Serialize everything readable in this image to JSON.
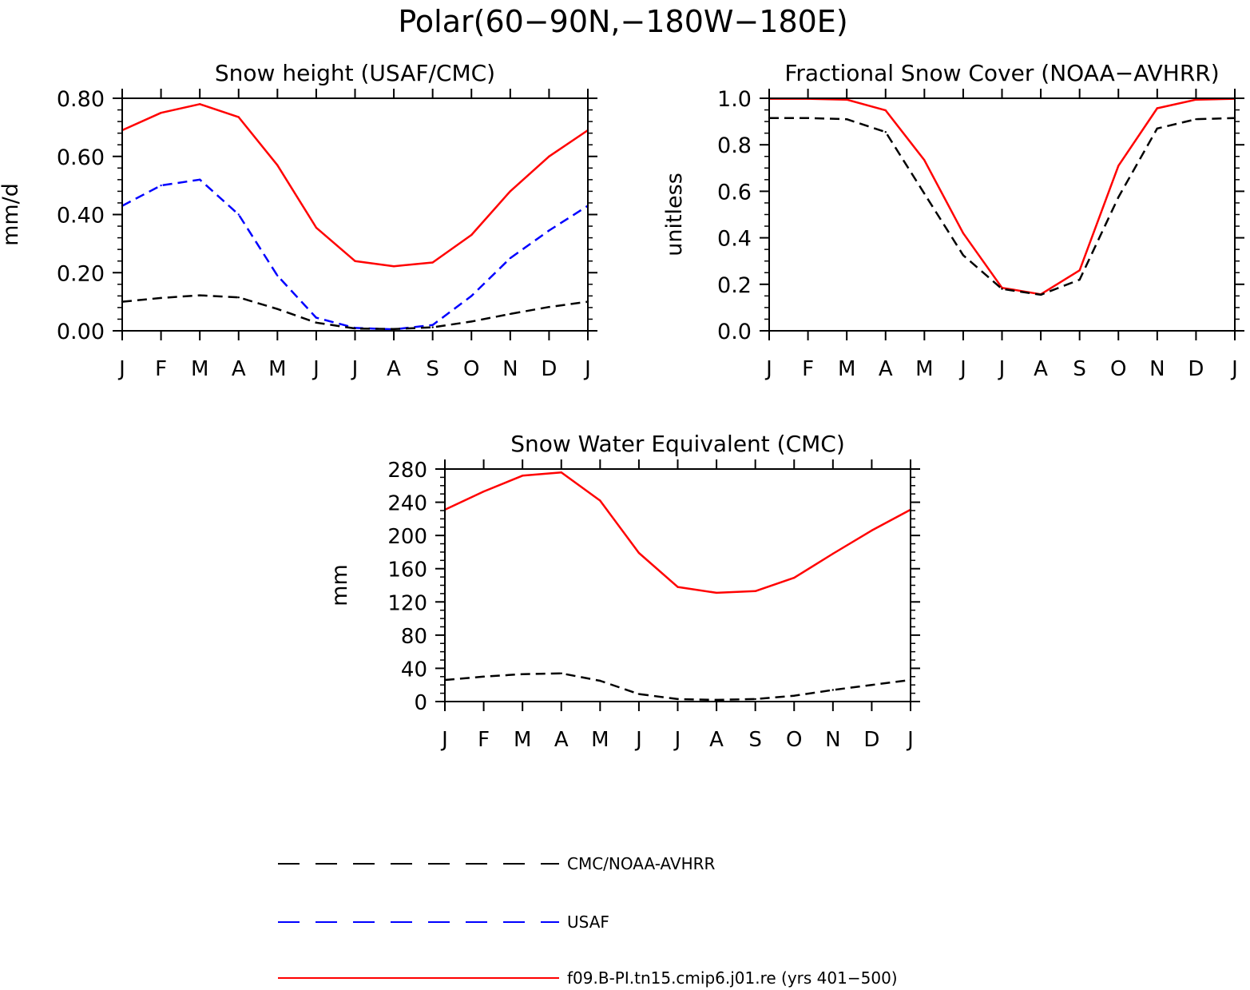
{
  "figure_title": "Polar(60−90N,−180W−180E)",
  "colors": {
    "model": "#ff0000",
    "obs_cmc_noaa": "#000000",
    "obs_usaf": "#0000ff"
  },
  "legend": {
    "items": [
      {
        "label": "CMC/NOAA-AVHRR",
        "color": "#000000",
        "style": "dashed"
      },
      {
        "label": "USAF",
        "color": "#0000ff",
        "style": "dashed"
      },
      {
        "label": "f09.B-PI.tn15.cmip6.j01.re (yrs 401−500)",
        "color": "#ff0000",
        "style": "solid"
      }
    ]
  },
  "chart_data": [
    {
      "type": "line",
      "title": "Snow height (USAF/CMC)",
      "xlabel": "",
      "ylabel": "mm/d",
      "categories": [
        "J",
        "F",
        "M",
        "A",
        "M",
        "J",
        "J",
        "A",
        "S",
        "O",
        "N",
        "D",
        "J"
      ],
      "ylim": [
        0,
        0.8
      ],
      "yticks": [
        0,
        0.2,
        0.4,
        0.6,
        0.8
      ],
      "ytick_labels": [
        "0.00",
        "0.20",
        "0.40",
        "0.60",
        "0.80"
      ],
      "grid": false,
      "series": [
        {
          "name": "f09.B-PI.tn15.cmip6.j01.re (yrs 401−500)",
          "color": "#ff0000",
          "style": "solid",
          "values": [
            0.69,
            0.75,
            0.78,
            0.735,
            0.57,
            0.355,
            0.24,
            0.222,
            0.235,
            0.33,
            0.48,
            0.6,
            0.69
          ]
        },
        {
          "name": "USAF",
          "color": "#0000ff",
          "style": "dashed",
          "values": [
            0.43,
            0.5,
            0.52,
            0.4,
            0.19,
            0.045,
            0.01,
            0.005,
            0.02,
            0.12,
            0.25,
            0.345,
            0.43
          ]
        },
        {
          "name": "CMC/NOAA-AVHRR",
          "color": "#000000",
          "style": "dashed",
          "values": [
            0.1,
            0.113,
            0.122,
            0.115,
            0.075,
            0.028,
            0.008,
            0.006,
            0.012,
            0.032,
            0.058,
            0.082,
            0.1
          ]
        }
      ]
    },
    {
      "type": "line",
      "title": "Fractional Snow Cover (NOAA−AVHRR)",
      "xlabel": "",
      "ylabel": "unitless",
      "categories": [
        "J",
        "F",
        "M",
        "A",
        "M",
        "J",
        "J",
        "A",
        "S",
        "O",
        "N",
        "D",
        "J"
      ],
      "ylim": [
        0,
        1.0
      ],
      "yticks": [
        0,
        0.2,
        0.4,
        0.6,
        0.8,
        1.0
      ],
      "ytick_labels": [
        "0.0",
        "0.2",
        "0.4",
        "0.6",
        "0.8",
        "1.0"
      ],
      "grid": false,
      "series": [
        {
          "name": "f09.B-PI.tn15.cmip6.j01.re (yrs 401−500)",
          "color": "#ff0000",
          "style": "solid",
          "values": [
            0.998,
            0.998,
            0.994,
            0.948,
            0.734,
            0.42,
            0.185,
            0.157,
            0.26,
            0.71,
            0.957,
            0.994,
            0.998
          ]
        },
        {
          "name": "CMC/NOAA-AVHRR",
          "color": "#000000",
          "style": "dashed",
          "values": [
            0.915,
            0.915,
            0.91,
            0.855,
            0.59,
            0.325,
            0.18,
            0.155,
            0.22,
            0.575,
            0.87,
            0.91,
            0.915
          ]
        }
      ]
    },
    {
      "type": "line",
      "title": "Snow Water Equivalent (CMC)",
      "xlabel": "",
      "ylabel": "mm",
      "categories": [
        "J",
        "F",
        "M",
        "A",
        "M",
        "J",
        "J",
        "A",
        "S",
        "O",
        "N",
        "D",
        "J"
      ],
      "ylim": [
        0,
        280
      ],
      "yticks": [
        0,
        40,
        80,
        120,
        160,
        200,
        240,
        280
      ],
      "ytick_labels": [
        "0",
        "40",
        "80",
        "120",
        "160",
        "200",
        "240",
        "280"
      ],
      "grid": false,
      "series": [
        {
          "name": "f09.B-PI.tn15.cmip6.j01.re (yrs 401−500)",
          "color": "#ff0000",
          "style": "solid",
          "values": [
            231,
            253,
            272,
            276,
            242,
            179,
            138,
            131,
            133,
            149,
            178,
            206,
            231
          ]
        },
        {
          "name": "CMC/NOAA-AVHRR",
          "color": "#000000",
          "style": "dashed",
          "values": [
            26,
            30,
            33,
            34,
            25,
            9,
            3,
            2,
            3,
            7,
            14,
            20,
            26
          ]
        }
      ]
    }
  ]
}
